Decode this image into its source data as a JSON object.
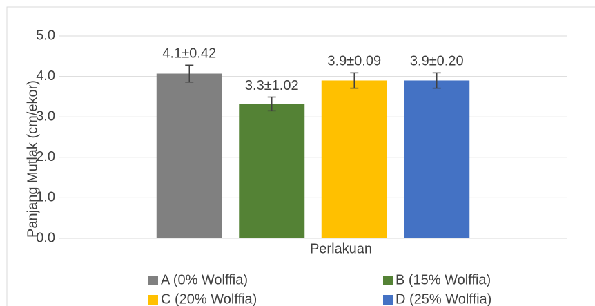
{
  "chart_data": {
    "type": "bar",
    "y_label": "Panjang Mutlak (cm/ekor)",
    "x_label": "Perlakuan",
    "categories": [
      "Perlakuan"
    ],
    "series": [
      {
        "name": "A (0% Wolffia)",
        "color": "#808080",
        "values": [
          4.07
        ],
        "errors": [
          0.21
        ],
        "value_labels": [
          "4.1±0.42"
        ]
      },
      {
        "name": "B (15% Wolffia)",
        "color": "#548235",
        "values": [
          3.32
        ],
        "errors": [
          0.17
        ],
        "value_labels": [
          "3.3±1.02"
        ]
      },
      {
        "name": "C (20% Wolffia)",
        "color": "#ffc000",
        "values": [
          3.9
        ],
        "errors": [
          0.19
        ],
        "value_labels": [
          "3.9±0.09"
        ]
      },
      {
        "name": "D (25% Wolffia)",
        "color": "#4472c4",
        "values": [
          3.9
        ],
        "errors": [
          0.19
        ],
        "value_labels": [
          "3.9±0.20"
        ]
      }
    ],
    "ylim": [
      0,
      5
    ],
    "yticks": [
      {
        "value": 0,
        "label": "0.0"
      },
      {
        "value": 1,
        "label": "1.0"
      },
      {
        "value": 2,
        "label": "2.0"
      },
      {
        "value": 3,
        "label": "3.0"
      },
      {
        "value": 4,
        "label": "4.0"
      },
      {
        "value": 5,
        "label": "5.0"
      }
    ],
    "grid": true,
    "legend": "bottom"
  }
}
